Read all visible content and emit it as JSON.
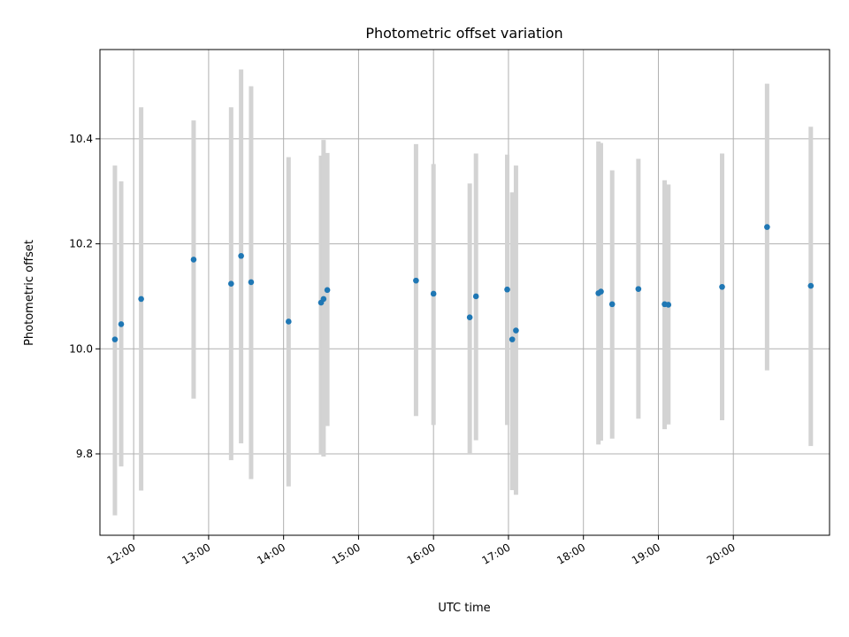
{
  "chart_data": {
    "type": "scatter",
    "title": "Photometric offset variation",
    "xlabel": "UTC time",
    "ylabel": "Photometric offset",
    "xlim": [
      "11:33",
      "21:17"
    ],
    "ylim": [
      9.645,
      10.57
    ],
    "grid": true,
    "error_bars": true,
    "x_ticks": [
      "12:00",
      "13:00",
      "14:00",
      "15:00",
      "16:00",
      "17:00",
      "18:00",
      "19:00",
      "20:00"
    ],
    "y_ticks": [
      "9.8",
      "10.0",
      "10.2",
      "10.4"
    ],
    "points": [
      {
        "x": "11:45",
        "y": 10.018,
        "low": 9.683,
        "high": 10.349
      },
      {
        "x": "11:50",
        "y": 10.047,
        "low": 9.776,
        "high": 10.319
      },
      {
        "x": "12:06",
        "y": 10.095,
        "low": 9.73,
        "high": 10.46
      },
      {
        "x": "12:48",
        "y": 10.17,
        "low": 9.905,
        "high": 10.435
      },
      {
        "x": "13:18",
        "y": 10.124,
        "low": 9.788,
        "high": 10.46
      },
      {
        "x": "13:26",
        "y": 10.177,
        "low": 9.82,
        "high": 10.532
      },
      {
        "x": "13:34",
        "y": 10.127,
        "low": 9.752,
        "high": 10.5
      },
      {
        "x": "14:04",
        "y": 10.052,
        "low": 9.738,
        "high": 10.365
      },
      {
        "x": "14:30",
        "y": 10.088,
        "low": 9.8,
        "high": 10.368
      },
      {
        "x": "14:32",
        "y": 10.095,
        "low": 9.795,
        "high": 10.398
      },
      {
        "x": "14:35",
        "y": 10.112,
        "low": 9.853,
        "high": 10.373
      },
      {
        "x": "15:46",
        "y": 10.13,
        "low": 9.872,
        "high": 10.39
      },
      {
        "x": "16:00",
        "y": 10.105,
        "low": 9.855,
        "high": 10.352
      },
      {
        "x": "16:29",
        "y": 10.06,
        "low": 9.8,
        "high": 10.315
      },
      {
        "x": "16:34",
        "y": 10.1,
        "low": 9.826,
        "high": 10.372
      },
      {
        "x": "16:59",
        "y": 10.113,
        "low": 9.855,
        "high": 10.37
      },
      {
        "x": "17:03",
        "y": 10.018,
        "low": 9.731,
        "high": 10.298
      },
      {
        "x": "17:06",
        "y": 10.035,
        "low": 9.722,
        "high": 10.349
      },
      {
        "x": "18:12",
        "y": 10.106,
        "low": 9.818,
        "high": 10.395
      },
      {
        "x": "18:14",
        "y": 10.109,
        "low": 9.825,
        "high": 10.392
      },
      {
        "x": "18:23",
        "y": 10.085,
        "low": 9.829,
        "high": 10.34
      },
      {
        "x": "18:44",
        "y": 10.114,
        "low": 9.867,
        "high": 10.362
      },
      {
        "x": "19:05",
        "y": 10.085,
        "low": 9.847,
        "high": 10.321
      },
      {
        "x": "19:08",
        "y": 10.084,
        "low": 9.856,
        "high": 10.313
      },
      {
        "x": "19:51",
        "y": 10.118,
        "low": 9.864,
        "high": 10.372
      },
      {
        "x": "20:27",
        "y": 10.232,
        "low": 9.959,
        "high": 10.505
      },
      {
        "x": "21:02",
        "y": 10.12,
        "low": 9.815,
        "high": 10.423
      }
    ]
  }
}
